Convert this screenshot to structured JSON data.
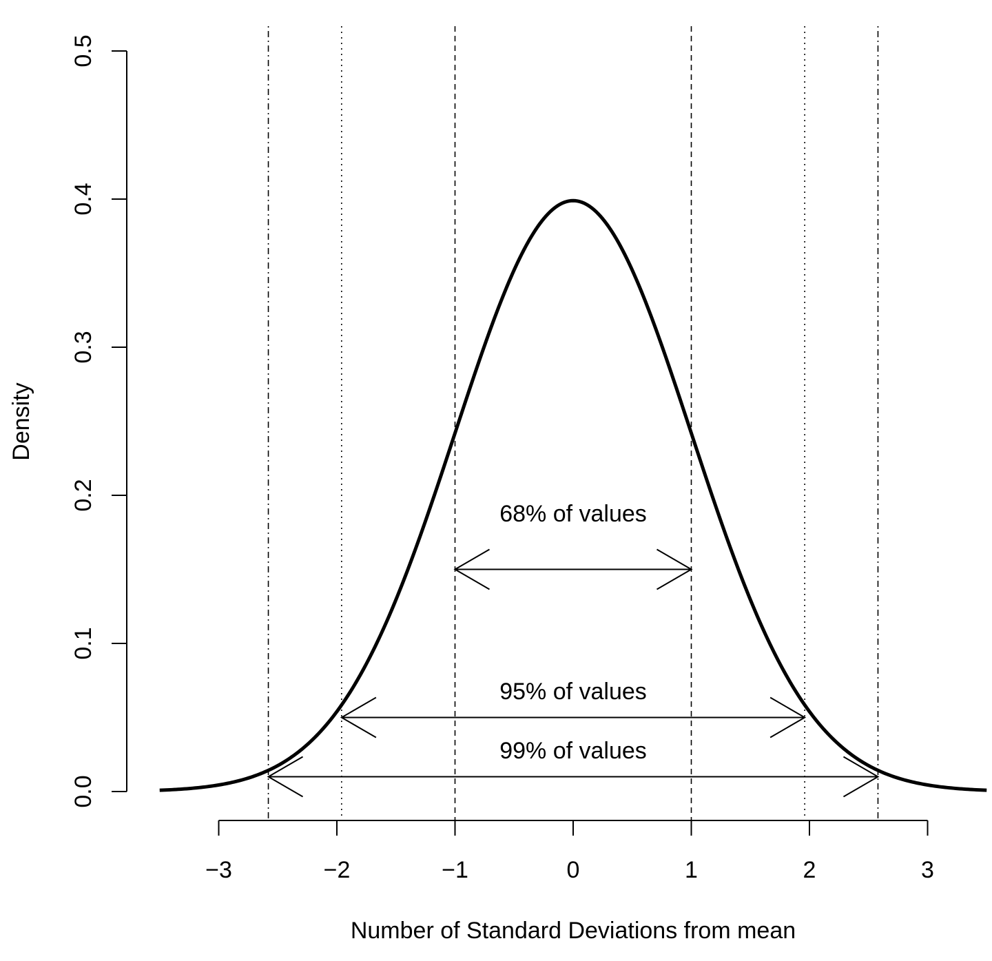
{
  "chart_data": {
    "type": "line",
    "title": "",
    "xlabel": "Number of Standard Deviations from mean",
    "ylabel": "Density",
    "xlim": [
      -3.5,
      3.5
    ],
    "ylim": [
      0,
      0.5
    ],
    "x_ticks": [
      {
        "value": -3,
        "label": "−3"
      },
      {
        "value": -2,
        "label": "−2"
      },
      {
        "value": -1,
        "label": "−1"
      },
      {
        "value": 0,
        "label": "0"
      },
      {
        "value": 1,
        "label": "1"
      },
      {
        "value": 2,
        "label": "2"
      },
      {
        "value": 3,
        "label": "3"
      }
    ],
    "y_ticks": [
      {
        "value": 0.0,
        "label": "0.0"
      },
      {
        "value": 0.1,
        "label": "0.1"
      },
      {
        "value": 0.2,
        "label": "0.2"
      },
      {
        "value": 0.3,
        "label": "0.3"
      },
      {
        "value": 0.4,
        "label": "0.4"
      },
      {
        "value": 0.5,
        "label": "0.5"
      }
    ],
    "grid": false,
    "series": [
      {
        "distribution": "standard normal density",
        "mean": 0,
        "sd": 1,
        "x_range": [
          -3.5,
          3.5
        ],
        "color": "#000000"
      }
    ],
    "reference_lines": [
      {
        "x": -2.58,
        "style": "dotdash"
      },
      {
        "x": -1.96,
        "style": "dotted"
      },
      {
        "x": -1,
        "style": "dashed"
      },
      {
        "x": 1,
        "style": "dashed"
      },
      {
        "x": 1.96,
        "style": "dotted"
      },
      {
        "x": 2.58,
        "style": "dotdash"
      }
    ],
    "annotations": [
      {
        "text": "68% of values",
        "x_from": -1,
        "x_to": 1,
        "y": 0.15,
        "label_y": 0.188
      },
      {
        "text": "95% of values",
        "x_from": -1.96,
        "x_to": 1.96,
        "y": 0.05,
        "label_y": 0.068
      },
      {
        "text": "99% of values",
        "x_from": -2.58,
        "x_to": 2.58,
        "y": 0.01,
        "label_y": 0.028
      }
    ]
  }
}
